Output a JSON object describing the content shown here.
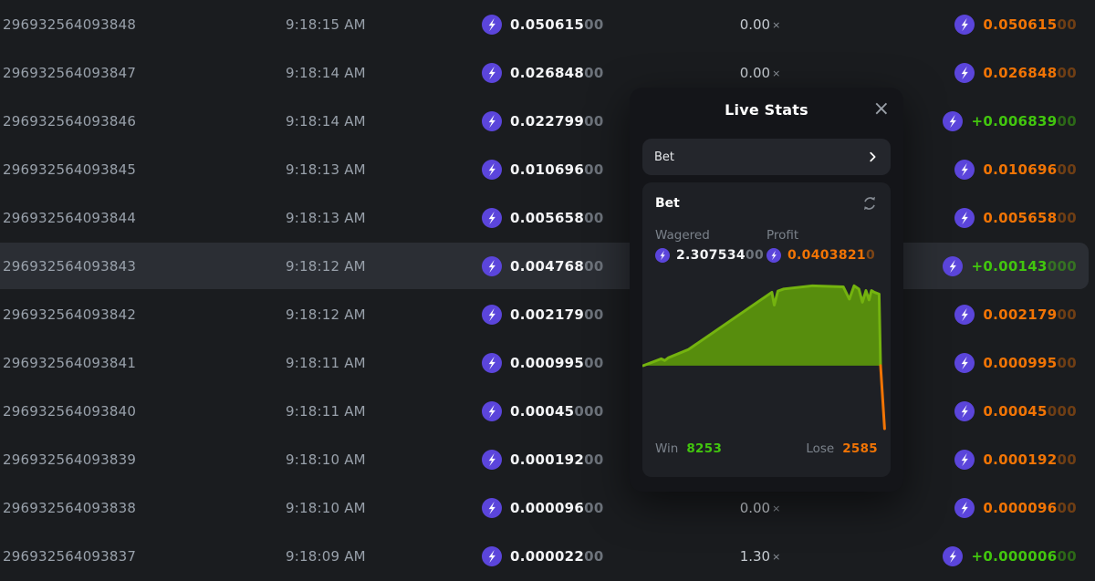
{
  "colors": {
    "background": "#1a1c1f",
    "row_highlight": "#2b2e34",
    "muted_text": "#99a1ab",
    "white_text": "#f4f5f7",
    "loss_orange": "#f17405",
    "win_green": "#42c60e",
    "coin_purple": "#5b45db",
    "panel_bg": "#141519",
    "card_bg": "#1e2025",
    "selector_bg": "#24262c",
    "chart_line_green": "#74b30f",
    "chart_fill_green": "#578d0d"
  },
  "table": {
    "multiplier_suffix": "×",
    "rows": [
      {
        "id": "296932564093848",
        "time": "9:18:15 AM",
        "bet_main": "0.050615",
        "bet_dim": "00",
        "multiplier": "0.00",
        "payout_main": "0.050615",
        "payout_dim": "00",
        "payout_kind": "loss",
        "highlighted": false
      },
      {
        "id": "296932564093847",
        "time": "9:18:14 AM",
        "bet_main": "0.026848",
        "bet_dim": "00",
        "multiplier": "0.00",
        "payout_main": "0.026848",
        "payout_dim": "00",
        "payout_kind": "loss",
        "highlighted": false
      },
      {
        "id": "296932564093846",
        "time": "9:18:14 AM",
        "bet_main": "0.022799",
        "bet_dim": "00",
        "multiplier": "",
        "payout_main": "+0.006839",
        "payout_dim": "00",
        "payout_kind": "win",
        "highlighted": false
      },
      {
        "id": "296932564093845",
        "time": "9:18:13 AM",
        "bet_main": "0.010696",
        "bet_dim": "00",
        "multiplier": "",
        "payout_main": "0.010696",
        "payout_dim": "00",
        "payout_kind": "loss",
        "highlighted": false
      },
      {
        "id": "296932564093844",
        "time": "9:18:13 AM",
        "bet_main": "0.005658",
        "bet_dim": "00",
        "multiplier": "",
        "payout_main": "0.005658",
        "payout_dim": "00",
        "payout_kind": "loss",
        "highlighted": false
      },
      {
        "id": "296932564093843",
        "time": "9:18:12 AM",
        "bet_main": "0.004768",
        "bet_dim": "00",
        "multiplier": "",
        "payout_main": "+0.00143",
        "payout_dim": "000",
        "payout_kind": "win",
        "highlighted": true
      },
      {
        "id": "296932564093842",
        "time": "9:18:12 AM",
        "bet_main": "0.002179",
        "bet_dim": "00",
        "multiplier": "",
        "payout_main": "0.002179",
        "payout_dim": "00",
        "payout_kind": "loss",
        "highlighted": false
      },
      {
        "id": "296932564093841",
        "time": "9:18:11 AM",
        "bet_main": "0.000995",
        "bet_dim": "00",
        "multiplier": "",
        "payout_main": "0.000995",
        "payout_dim": "00",
        "payout_kind": "loss",
        "highlighted": false
      },
      {
        "id": "296932564093840",
        "time": "9:18:11 AM",
        "bet_main": "0.00045",
        "bet_dim": "000",
        "multiplier": "",
        "payout_main": "0.00045",
        "payout_dim": "000",
        "payout_kind": "loss",
        "highlighted": false
      },
      {
        "id": "296932564093839",
        "time": "9:18:10 AM",
        "bet_main": "0.000192",
        "bet_dim": "00",
        "multiplier": "",
        "payout_main": "0.000192",
        "payout_dim": "00",
        "payout_kind": "loss",
        "highlighted": false
      },
      {
        "id": "296932564093838",
        "time": "9:18:10 AM",
        "bet_main": "0.000096",
        "bet_dim": "00",
        "multiplier": "0.00",
        "payout_main": "0.000096",
        "payout_dim": "00",
        "payout_kind": "loss",
        "highlighted": false
      },
      {
        "id": "296932564093837",
        "time": "9:18:09 AM",
        "bet_main": "0.000022",
        "bet_dim": "00",
        "multiplier": "1.30",
        "payout_main": "+0.000006",
        "payout_dim": "00",
        "payout_kind": "win",
        "highlighted": false
      }
    ]
  },
  "panel": {
    "title": "Live Stats",
    "selector_label": "Bet",
    "card": {
      "title": "Bet",
      "wagered_label": "Wagered",
      "wagered_value_main": "2.307534",
      "wagered_value_dim": "00",
      "profit_label": "Profit",
      "profit_value_main": "0.0403821",
      "profit_value_dim": "0",
      "win_label": "Win",
      "win_value": "8253",
      "lose_label": "Lose",
      "lose_value": "2585"
    }
  },
  "chart_data": {
    "type": "area",
    "title": "Live bet profit curve",
    "legend": "none",
    "grid": false,
    "baseline": 0,
    "x_range": [
      0,
      101.5
    ],
    "win": 8253,
    "lose": 2585,
    "series": [
      {
        "name": "profit",
        "color": "#74b30f",
        "points": [
          [
            0,
            0
          ],
          [
            7.5,
            0.04
          ],
          [
            9,
            0.03
          ],
          [
            10.5,
            0.046
          ],
          [
            19,
            0.095
          ],
          [
            54,
            0.43
          ],
          [
            55,
            0.355
          ],
          [
            56.5,
            0.437
          ],
          [
            59,
            0.45
          ],
          [
            71,
            0.468
          ],
          [
            84,
            0.462
          ],
          [
            86.5,
            0.39
          ],
          [
            88.5,
            0.468
          ],
          [
            90.5,
            0.45
          ],
          [
            92,
            0.372
          ],
          [
            93.5,
            0.44
          ],
          [
            94.8,
            0.385
          ],
          [
            95.8,
            0.44
          ],
          [
            97,
            0.43
          ],
          [
            99,
            0.42
          ],
          [
            99.6,
            0
          ]
        ]
      },
      {
        "name": "profit-drop",
        "color": "#f17405",
        "points": [
          [
            99.6,
            0
          ],
          [
            101.3,
            -0.37
          ]
        ]
      }
    ]
  }
}
